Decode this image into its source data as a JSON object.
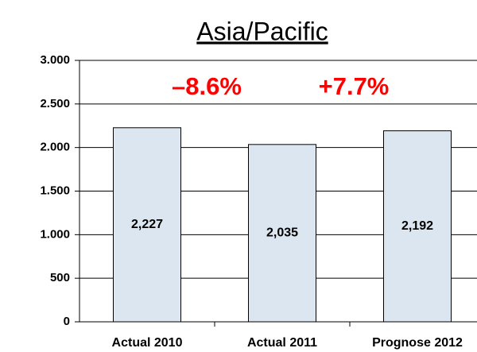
{
  "chart_data": {
    "type": "bar",
    "title": "Asia/Pacific",
    "categories": [
      "Actual 2010",
      "Actual 2011",
      "Prognose 2012"
    ],
    "values": [
      2227,
      2035,
      2192
    ],
    "value_labels": [
      "2,227",
      "2,035",
      "2,192"
    ],
    "color": "#dce6f0",
    "ylim": [
      0,
      3000
    ],
    "yticks": [
      0,
      500,
      {
        "value": 1000,
        "label": "1.000"
      },
      {
        "value": 1500,
        "label": "1.500"
      },
      {
        "value": 2000,
        "label": "2.000"
      },
      {
        "value": 2500,
        "label": "2.500"
      },
      {
        "value": 3000,
        "label": "3.000"
      }
    ],
    "grid": true,
    "annotations": [
      "–8.6%",
      "+7.7%"
    ]
  }
}
